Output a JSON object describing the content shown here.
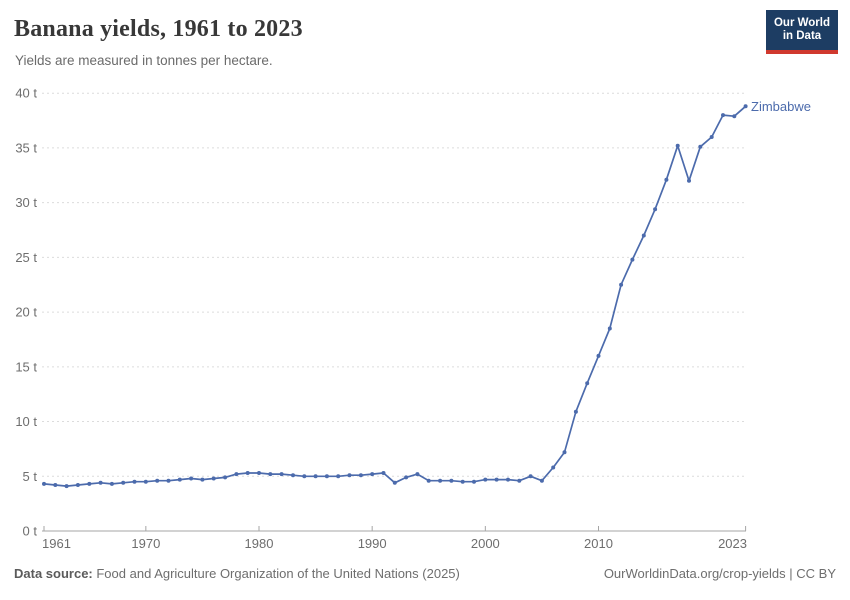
{
  "header": {
    "title": "Banana yields, 1961 to 2023",
    "subtitle": "Yields are measured in tonnes per hectare."
  },
  "logo": {
    "line1": "Our World",
    "line2": "in Data"
  },
  "footer": {
    "source_label": "Data source:",
    "source_text": " Food and Agriculture Organization of the United Nations (2025)",
    "link": "OurWorldinData.org/crop-yields",
    "separator": " | ",
    "license": "CC BY"
  },
  "colors": {
    "series": "#4c6bac",
    "gridline": "#dcdcdc",
    "axis_line": "#a5a5a5",
    "tick_label": "#6e6e6e",
    "logo_bg": "#1d3d63",
    "logo_accent": "#d0392e"
  },
  "chart_data": {
    "type": "line",
    "title": "Banana yields, 1961 to 2023",
    "subtitle": "Yields are measured in tonnes per hectare.",
    "xlabel": "",
    "ylabel": "tonnes per hectare",
    "unit": "t",
    "xlim": [
      1961,
      2023
    ],
    "ylim": [
      0,
      40
    ],
    "grid": "horizontal-dashed",
    "legend": "end-of-line-label",
    "xticks": [
      1961,
      1970,
      1980,
      1990,
      2000,
      2010,
      2023
    ],
    "xtick_labels": [
      "1961",
      "1970",
      "1980",
      "1990",
      "2000",
      "2010",
      "2023"
    ],
    "yticks": [
      0,
      5,
      10,
      15,
      20,
      25,
      30,
      35,
      40
    ],
    "ytick_labels": [
      "0 t",
      "5 t",
      "10 t",
      "15 t",
      "20 t",
      "25 t",
      "30 t",
      "35 t",
      "40 t"
    ],
    "x": [
      1961,
      1962,
      1963,
      1964,
      1965,
      1966,
      1967,
      1968,
      1969,
      1970,
      1971,
      1972,
      1973,
      1974,
      1975,
      1976,
      1977,
      1978,
      1979,
      1980,
      1981,
      1982,
      1983,
      1984,
      1985,
      1986,
      1987,
      1988,
      1989,
      1990,
      1991,
      1992,
      1993,
      1994,
      1995,
      1996,
      1997,
      1998,
      1999,
      2000,
      2001,
      2002,
      2003,
      2004,
      2005,
      2006,
      2007,
      2008,
      2009,
      2010,
      2011,
      2012,
      2013,
      2014,
      2015,
      2016,
      2017,
      2018,
      2019,
      2020,
      2021,
      2022,
      2023
    ],
    "series": [
      {
        "name": "Zimbabwe",
        "color": "#4c6bac",
        "values": [
          4.3,
          4.2,
          4.1,
          4.2,
          4.3,
          4.4,
          4.3,
          4.4,
          4.5,
          4.5,
          4.6,
          4.6,
          4.7,
          4.8,
          4.7,
          4.8,
          4.9,
          5.2,
          5.3,
          5.3,
          5.2,
          5.2,
          5.1,
          5.0,
          5.0,
          5.0,
          5.0,
          5.1,
          5.1,
          5.2,
          5.3,
          4.4,
          4.9,
          5.2,
          4.6,
          4.6,
          4.6,
          4.5,
          4.5,
          4.7,
          4.7,
          4.7,
          4.6,
          5.0,
          4.6,
          5.8,
          7.2,
          10.9,
          13.5,
          16.0,
          18.5,
          22.5,
          24.8,
          27.0,
          29.4,
          32.1,
          35.2,
          32.0,
          35.1,
          36.0,
          38.0,
          37.9,
          38.8
        ]
      }
    ]
  }
}
